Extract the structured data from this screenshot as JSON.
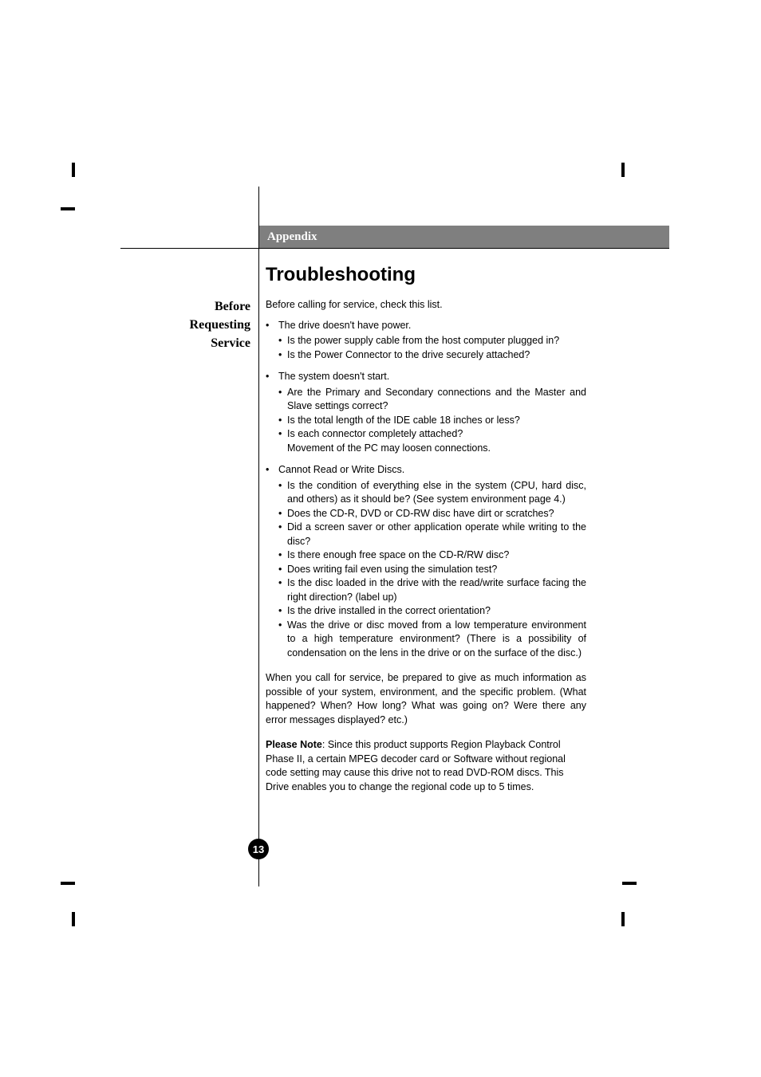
{
  "section_header": "Appendix",
  "main_title": "Troubleshooting",
  "sidebar": {
    "line1": "Before",
    "line2": "Requesting",
    "line3": "Service"
  },
  "intro": "Before calling for service, check this list.",
  "groups": [
    {
      "title": "The drive doesn't have power.",
      "items": [
        "Is the power supply cable from the host computer plugged in?",
        "Is the Power Connector to the drive securely attached?"
      ]
    },
    {
      "title": "The system doesn't start.",
      "items": [
        "Are the Primary and Secondary connections and the Master and Slave settings correct?",
        "Is the total length of the IDE cable 18 inches or less?",
        "Is each connector completely attached?"
      ],
      "trailing": "Movement of the PC may loosen connections."
    },
    {
      "title": "Cannot Read or Write Discs.",
      "items": [
        "Is the condition of everything else in the system (CPU, hard disc, and others) as it should be? (See system environment page 4.)",
        "Does the CD-R, DVD or CD-RW disc have dirt or scratches?",
        "Did a screen saver or other application operate while writing to the disc?",
        "Is there enough free space on the CD-R/RW disc?",
        "Does writing fail even using the simulation test?",
        "Is the disc loaded in the drive with the read/write surface facing the right direction? (label up)",
        "Is the drive installed in the correct orientation?",
        "Was the drive or disc moved from a low temperature environment to a high temperature environment? (There is a possibility of condensation on the lens in the drive or on the surface of the disc.)"
      ]
    }
  ],
  "closing_paragraph": "When you call for service, be prepared to give as much information as possible of your system, environment, and the specific problem. (What happened? When? How long? What was going on? Were there any error messages displayed? etc.)",
  "note_label": "Please Note",
  "note_text": ": Since this product supports Region Playback Control Phase II, a certain MPEG decoder card or Software without regional code setting may cause this drive not to read DVD-ROM discs. This Drive enables you to change the regional code up to 5 times.",
  "page_number": "13",
  "colors": {
    "header_bg": "#7f7f7f",
    "header_text": "#ffffff",
    "text": "#000000",
    "background": "#ffffff"
  }
}
